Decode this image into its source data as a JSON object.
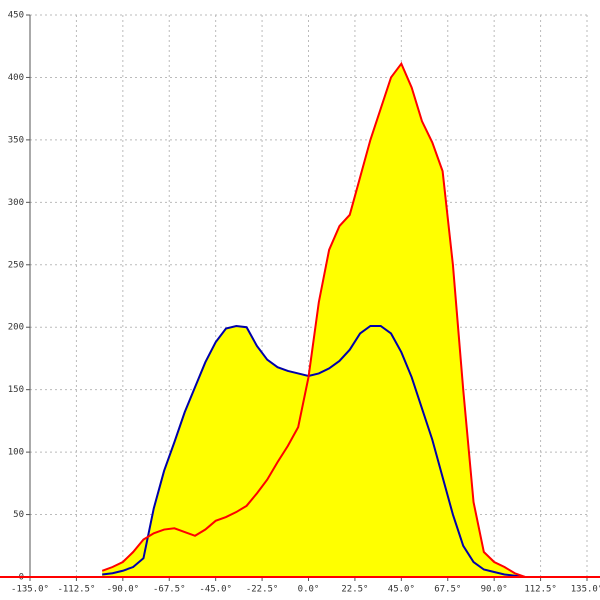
{
  "chart_data": {
    "type": "area",
    "x": [
      -100,
      -95,
      -90,
      -85,
      -80,
      -75,
      -70,
      -65,
      -60,
      -55,
      -50,
      -45,
      -40,
      -35,
      -30,
      -25,
      -20,
      -15,
      -10,
      -5,
      0,
      5,
      10,
      15,
      20,
      25,
      30,
      35,
      40,
      45,
      50,
      55,
      60,
      65,
      70,
      75,
      80,
      85,
      90,
      95,
      100,
      105
    ],
    "series": [
      {
        "color": "#0000aa",
        "fill": "#ffff00",
        "values": [
          2,
          3,
          5,
          8,
          15,
          55,
          85,
          108,
          132,
          152,
          172,
          188,
          199,
          201,
          200,
          185,
          174,
          168,
          165,
          163,
          161,
          163,
          167,
          173,
          182,
          195,
          201,
          201,
          195,
          180,
          160,
          135,
          110,
          80,
          50,
          25,
          12,
          6,
          4,
          2,
          1,
          0
        ]
      },
      {
        "color": "#ff0000",
        "fill": "#ffff00",
        "values": [
          5,
          8,
          12,
          20,
          30,
          35,
          38,
          39,
          36,
          33,
          38,
          45,
          48,
          52,
          57,
          67,
          78,
          92,
          105,
          120,
          160,
          220,
          262,
          281,
          290,
          320,
          350,
          375,
          400,
          411,
          392,
          365,
          348,
          325,
          250,
          150,
          60,
          20,
          12,
          8,
          3,
          0
        ]
      }
    ],
    "xlim": [
      -135,
      135
    ],
    "ylim": [
      0,
      450
    ],
    "xticks": [
      {
        "value": -135,
        "label": "-135.0°"
      },
      {
        "value": -112.5,
        "label": "-112.5°"
      },
      {
        "value": -90,
        "label": "-90.0°"
      },
      {
        "value": -67.5,
        "label": "-67.5°"
      },
      {
        "value": -45,
        "label": "-45.0°"
      },
      {
        "value": -22.5,
        "label": "-22.5°"
      },
      {
        "value": 0,
        "label": "0.0°"
      },
      {
        "value": 22.5,
        "label": "22.5°"
      },
      {
        "value": 45,
        "label": "45.0°"
      },
      {
        "value": 67.5,
        "label": "67.5°"
      },
      {
        "value": 90,
        "label": "90.0°"
      },
      {
        "value": 112.5,
        "label": "112.5°"
      },
      {
        "value": 135,
        "label": "135.0°"
      }
    ],
    "yticks": [
      0,
      50,
      100,
      150,
      200,
      250,
      300,
      350,
      400,
      450
    ],
    "grid": true,
    "axis_color": "#ff0000"
  }
}
